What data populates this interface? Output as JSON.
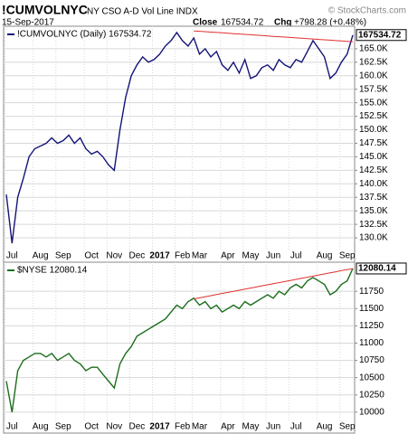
{
  "header": {
    "symbol": "!CUMVOLNYC",
    "description": "NY CSO A-D Vol Line INDX",
    "source": "© StockCharts.com",
    "date": "15-Sep-2017",
    "close_label": "Close",
    "close": "167534.72",
    "change_label": "Chg",
    "change": "+798.28 (+0.48%)"
  },
  "chart_data": [
    {
      "type": "line",
      "grid": true,
      "legend_position": "top-left",
      "categories": [
        null,
        "Jul",
        null,
        null,
        null,
        null,
        "Aug",
        null,
        null,
        null,
        "Sep",
        null,
        null,
        null,
        null,
        "Oct",
        null,
        null,
        null,
        "Nov",
        null,
        null,
        null,
        "Dec",
        null,
        null,
        null,
        "2017",
        null,
        null,
        null,
        "Feb",
        null,
        null,
        "Mar",
        null,
        null,
        null,
        null,
        "Apr",
        null,
        null,
        null,
        "May",
        null,
        null,
        null,
        "Jun",
        null,
        null,
        null,
        "Jul",
        null,
        null,
        null,
        null,
        "Aug",
        null,
        null,
        null,
        "Sep",
        null
      ],
      "ylim": [
        128000,
        169000
      ],
      "yticks": [
        {
          "value": 130000,
          "label": "130.0K"
        },
        {
          "value": 132500,
          "label": "132.5K"
        },
        {
          "value": 135000,
          "label": "135.0K"
        },
        {
          "value": 137500,
          "label": "137.5K"
        },
        {
          "value": 140000,
          "label": "140.0K"
        },
        {
          "value": 142500,
          "label": "142.5K"
        },
        {
          "value": 145000,
          "label": "145.0K"
        },
        {
          "value": 147500,
          "label": "147.5K"
        },
        {
          "value": 150000,
          "label": "150.0K"
        },
        {
          "value": 152500,
          "label": "152.5K"
        },
        {
          "value": 155000,
          "label": "155.0K"
        },
        {
          "value": 157500,
          "label": "157.5K"
        },
        {
          "value": 160000,
          "label": "160.0K"
        },
        {
          "value": 162500,
          "label": "162.5K"
        },
        {
          "value": 165000,
          "label": "165.0K"
        }
      ],
      "series": [
        {
          "name": "!CUMVOLNYC (Daily) 167534.72",
          "color": "#141477",
          "values": [
            138000,
            129000,
            137500,
            141000,
            145000,
            146500,
            147000,
            147500,
            148500,
            147500,
            148000,
            149000,
            147500,
            148500,
            146500,
            145500,
            146000,
            145000,
            143500,
            142500,
            150000,
            156000,
            160000,
            162000,
            163500,
            162500,
            163000,
            164000,
            165500,
            166500,
            168000,
            166500,
            165500,
            167000,
            164000,
            165000,
            163500,
            164500,
            162000,
            161000,
            162500,
            160500,
            163000,
            159500,
            160000,
            161500,
            162000,
            161000,
            163000,
            162000,
            161500,
            163000,
            162500,
            164500,
            166500,
            165000,
            163500,
            159500,
            160500,
            162500,
            164000,
            167534.72
          ]
        },
        {
          "color": "#e03030",
          "values": [
            null,
            null,
            null,
            null,
            null,
            null,
            null,
            null,
            null,
            null,
            null,
            null,
            null,
            null,
            null,
            null,
            null,
            null,
            null,
            null,
            null,
            null,
            null,
            null,
            null,
            null,
            null,
            null,
            null,
            null,
            null,
            null,
            null,
            168300,
            168229,
            168157,
            168086,
            168014,
            167943,
            167871,
            167800,
            167729,
            167657,
            167586,
            167514,
            167443,
            167371,
            167300,
            167229,
            167157,
            167086,
            167014,
            166943,
            166871,
            166800,
            166729,
            166657,
            166586,
            166514,
            166443,
            166371,
            166300
          ]
        }
      ]
    },
    {
      "type": "line",
      "grid": true,
      "legend_position": "top-left",
      "categories": [
        null,
        "Jul",
        null,
        null,
        null,
        null,
        "Aug",
        null,
        null,
        null,
        "Sep",
        null,
        null,
        null,
        null,
        "Oct",
        null,
        null,
        null,
        "Nov",
        null,
        null,
        null,
        "Dec",
        null,
        null,
        null,
        "2017",
        null,
        null,
        null,
        "Feb",
        null,
        null,
        "Mar",
        null,
        null,
        null,
        null,
        "Apr",
        null,
        null,
        null,
        "May",
        null,
        null,
        null,
        "Jun",
        null,
        null,
        null,
        "Jul",
        null,
        null,
        null,
        null,
        "Aug",
        null,
        null,
        null,
        "Sep",
        null
      ],
      "ylim": [
        9920,
        12145
      ],
      "yticks": [
        10000,
        10250,
        10500,
        10750,
        11000,
        11250,
        11500,
        11750
      ],
      "series": [
        {
          "name": "$NYSE 12080.14",
          "color": "#1c6e1c",
          "values": [
            10450,
            10000,
            10600,
            10750,
            10800,
            10850,
            10850,
            10800,
            10850,
            10750,
            10800,
            10850,
            10750,
            10700,
            10600,
            10650,
            10650,
            10550,
            10450,
            10350,
            10700,
            10850,
            10950,
            11100,
            11150,
            11200,
            11250,
            11300,
            11350,
            11450,
            11550,
            11500,
            11600,
            11650,
            11550,
            11600,
            11500,
            11550,
            11450,
            11500,
            11550,
            11500,
            11600,
            11550,
            11600,
            11650,
            11700,
            11650,
            11750,
            11700,
            11800,
            11850,
            11800,
            11900,
            11950,
            11900,
            11850,
            11700,
            11750,
            11850,
            11900,
            12080.14
          ]
        },
        {
          "color": "#e03030",
          "values": [
            null,
            null,
            null,
            null,
            null,
            null,
            null,
            null,
            null,
            null,
            null,
            null,
            null,
            null,
            null,
            null,
            null,
            null,
            null,
            null,
            null,
            null,
            null,
            null,
            null,
            null,
            null,
            null,
            null,
            null,
            null,
            null,
            null,
            11640,
            11656,
            11671,
            11687,
            11703,
            11719,
            11734,
            11750,
            11766,
            11781,
            11797,
            11813,
            11829,
            11844,
            11860,
            11876,
            11891,
            11907,
            11923,
            11939,
            11954,
            11970,
            11986,
            12001,
            12017,
            12033,
            12049,
            12064,
            12080
          ]
        }
      ]
    }
  ]
}
